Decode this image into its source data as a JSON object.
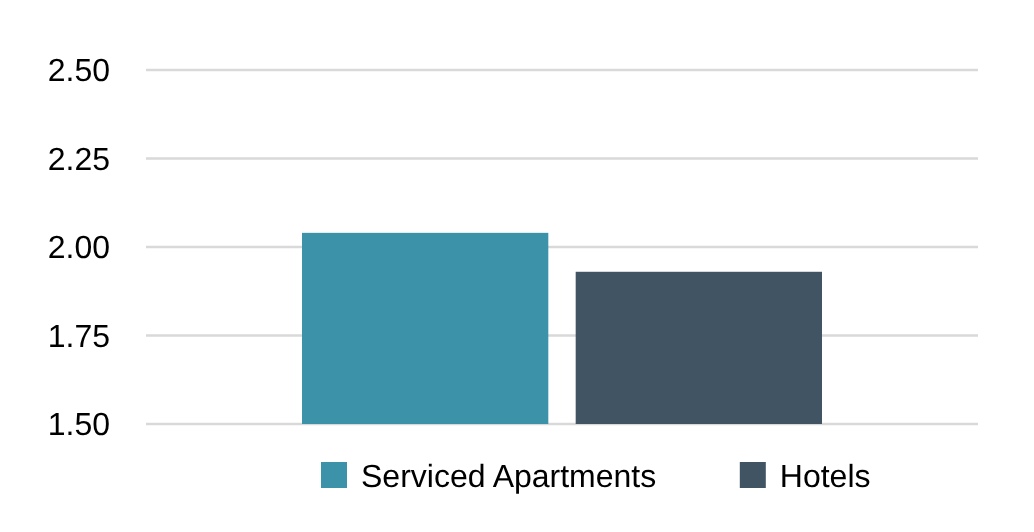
{
  "chart_data": {
    "type": "bar",
    "categories": [
      null
    ],
    "series": [
      {
        "name": "Serviced Apartments",
        "color": "#3c93a9",
        "values": [
          2.04
        ]
      },
      {
        "name": "Hotels",
        "color": "#415464",
        "values": [
          1.93
        ]
      }
    ],
    "ylim": [
      1.5,
      2.5
    ],
    "yticks": [
      {
        "value": 1.5,
        "label": "1.50"
      },
      {
        "value": 1.75,
        "label": "1.75"
      },
      {
        "value": 2,
        "label": "2.00"
      },
      {
        "value": 2.25,
        "label": "2.25"
      },
      {
        "value": 2.5,
        "label": "2.50"
      }
    ],
    "grid": "y",
    "legend": "bottom"
  }
}
